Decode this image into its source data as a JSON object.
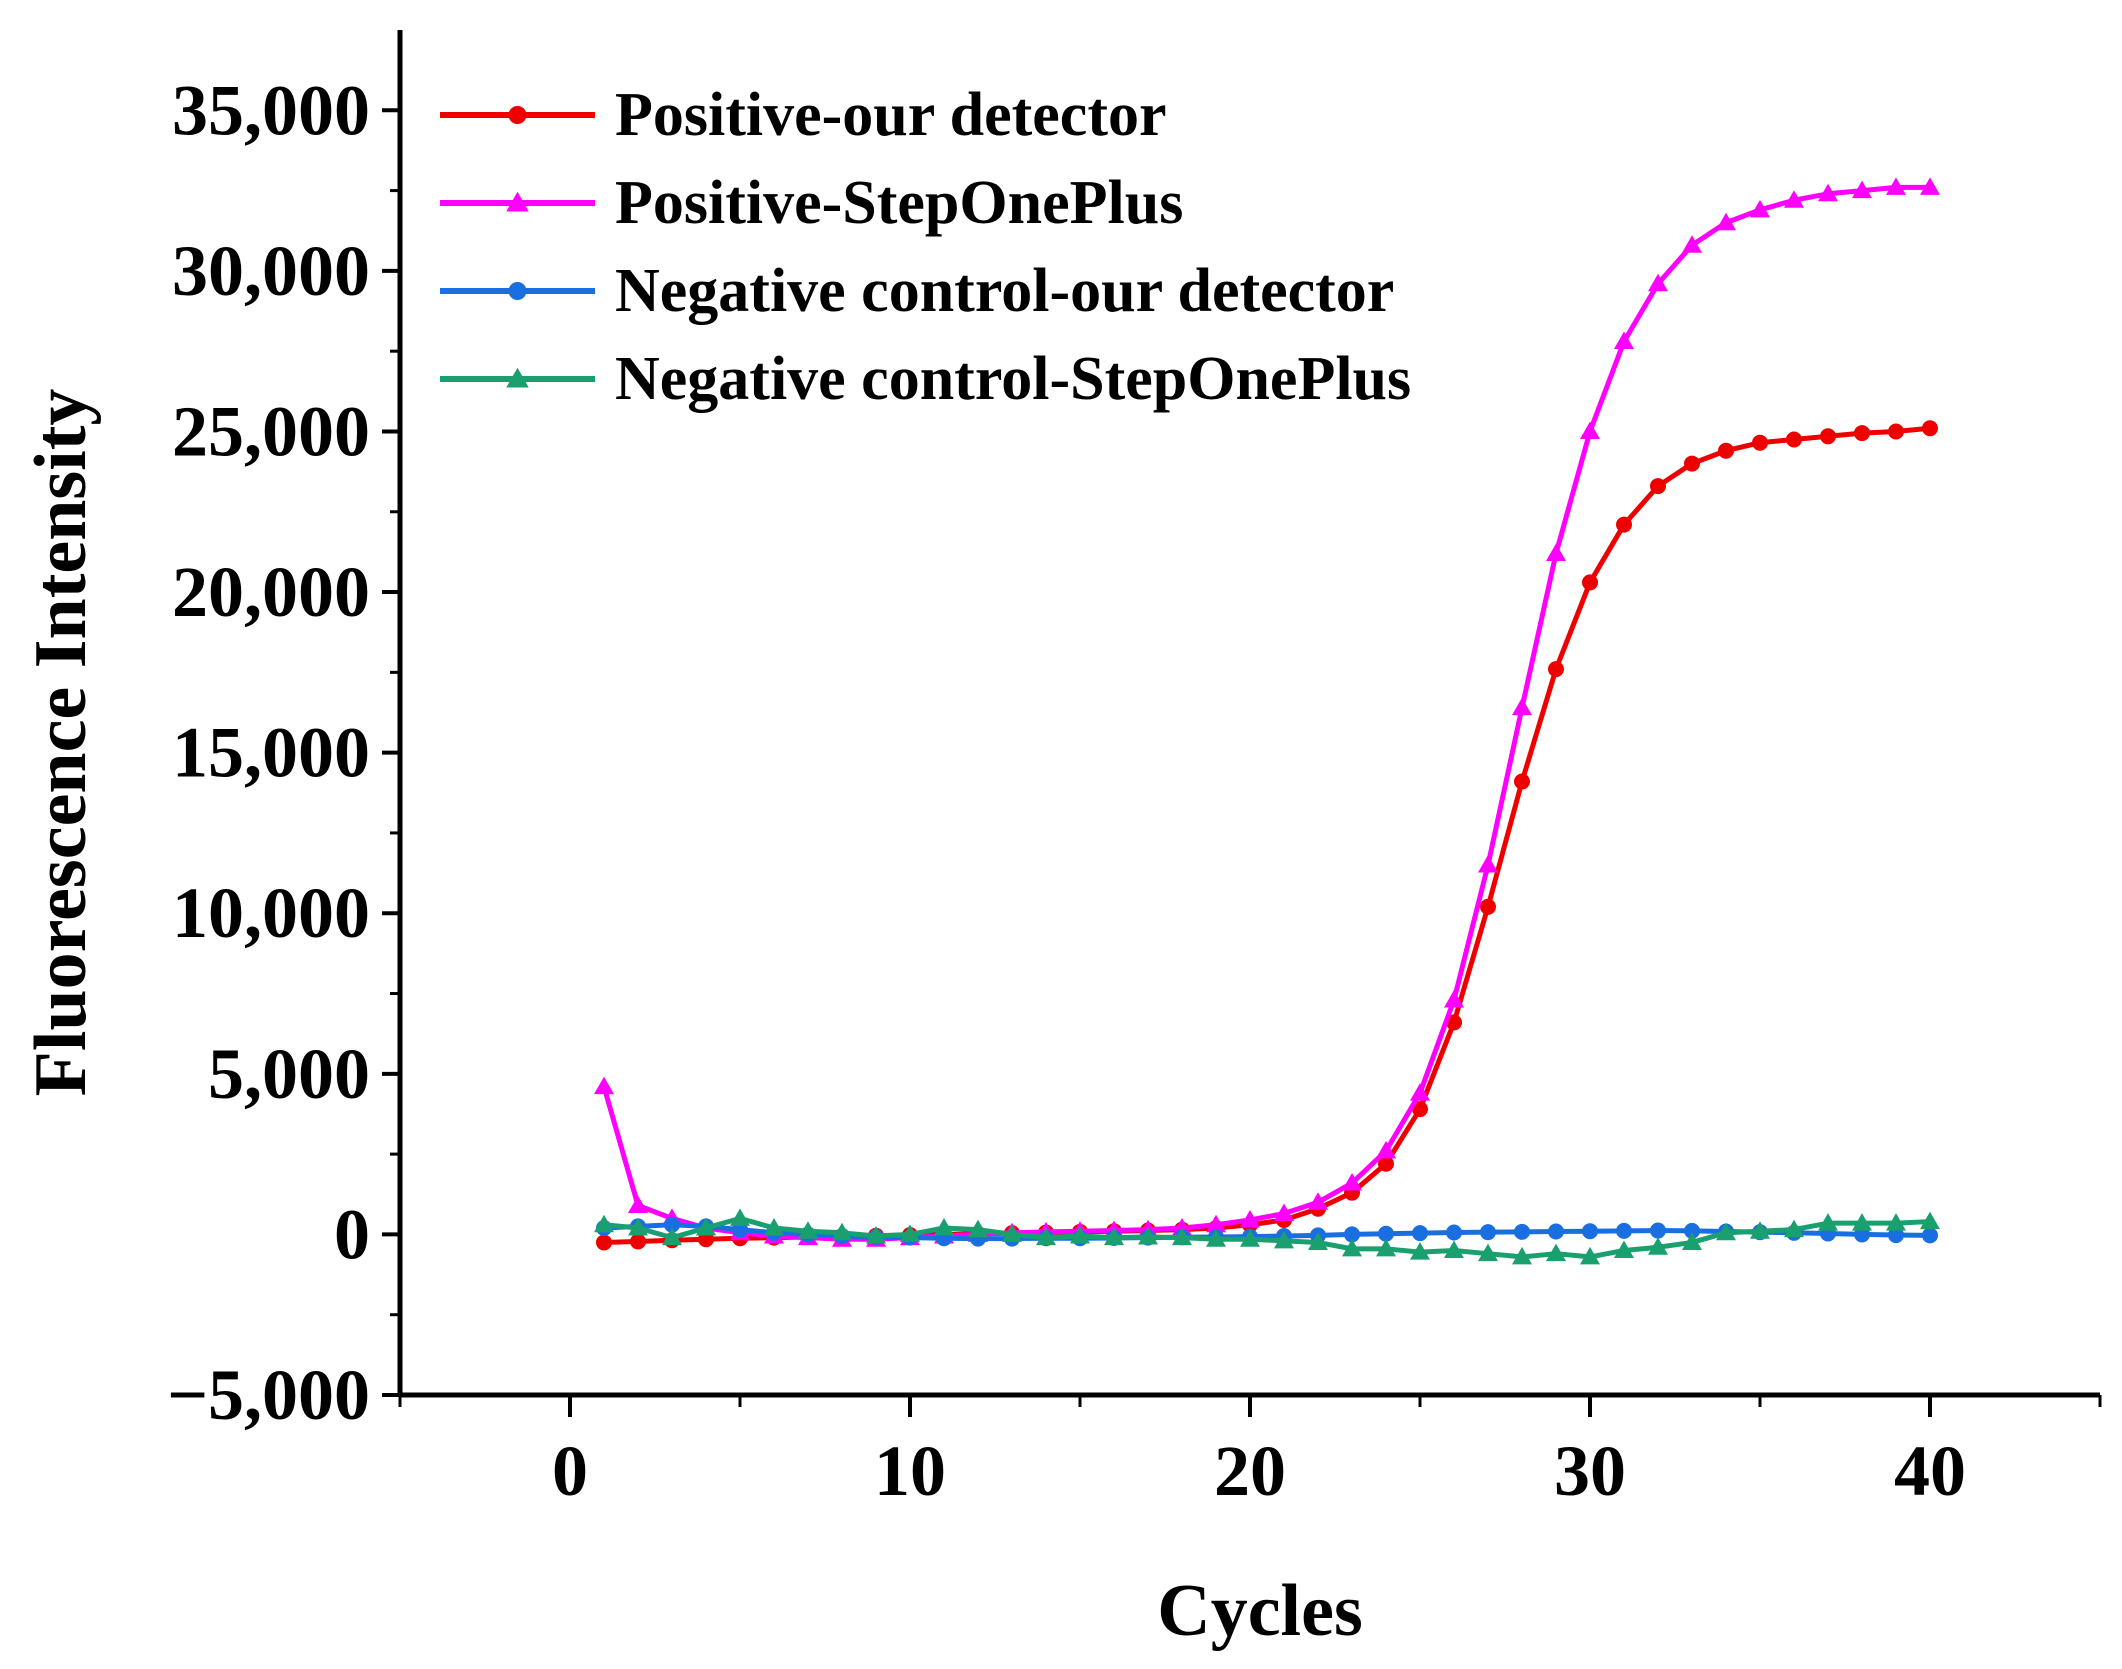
{
  "chart_data": {
    "type": "line",
    "title": "",
    "xlabel": "Cycles",
    "ylabel": "Fluorescence Intensity",
    "xlim": [
      -5,
      45
    ],
    "ylim": [
      -5000,
      37500
    ],
    "xticks": [
      0,
      10,
      20,
      30,
      40
    ],
    "xtick_labels": [
      "0",
      "10",
      "20",
      "30",
      "40"
    ],
    "yticks": [
      -5000,
      0,
      5000,
      10000,
      15000,
      20000,
      25000,
      30000,
      35000
    ],
    "ytick_labels": [
      "−5,000",
      "0",
      "5,000",
      "10,000",
      "15,000",
      "20,000",
      "25,000",
      "30,000",
      "35,000"
    ],
    "legend_position": "top-left",
    "x": [
      1,
      2,
      3,
      4,
      5,
      6,
      7,
      8,
      9,
      10,
      11,
      12,
      13,
      14,
      15,
      16,
      17,
      18,
      19,
      20,
      21,
      22,
      23,
      24,
      25,
      26,
      27,
      28,
      29,
      30,
      31,
      32,
      33,
      34,
      35,
      36,
      37,
      38,
      39,
      40
    ],
    "series": [
      {
        "name": "Positive-our detector",
        "color": "#ee0000",
        "marker": "circle",
        "values": [
          -250,
          -220,
          -180,
          -150,
          -120,
          -100,
          -80,
          -60,
          -40,
          -20,
          0,
          20,
          40,
          60,
          80,
          100,
          120,
          150,
          200,
          300,
          450,
          800,
          1300,
          2200,
          3900,
          6600,
          10200,
          14100,
          17600,
          20300,
          22100,
          23300,
          24000,
          24400,
          24650,
          24750,
          24850,
          24950,
          25000,
          25100
        ]
      },
      {
        "name": "Positive-StepOnePlus",
        "color": "#ff00ff",
        "marker": "triangle",
        "values": [
          4600,
          900,
          500,
          200,
          50,
          -50,
          -100,
          -150,
          -150,
          -100,
          -50,
          0,
          50,
          80,
          100,
          120,
          150,
          200,
          300,
          450,
          650,
          1000,
          1600,
          2600,
          4400,
          7300,
          11500,
          16400,
          21200,
          25000,
          27800,
          29600,
          30800,
          31500,
          31900,
          32200,
          32400,
          32500,
          32600,
          32600
        ]
      },
      {
        "name": "Negative control-our detector",
        "color": "#1a6fe0",
        "marker": "circle",
        "values": [
          200,
          250,
          300,
          250,
          150,
          50,
          0,
          -50,
          -80,
          -100,
          -120,
          -130,
          -130,
          -120,
          -120,
          -110,
          -100,
          -90,
          -80,
          -70,
          -50,
          -30,
          0,
          20,
          40,
          60,
          70,
          80,
          90,
          100,
          110,
          120,
          110,
          90,
          70,
          50,
          30,
          0,
          -20,
          -30
        ]
      },
      {
        "name": "Negative control-StepOnePlus",
        "color": "#1aa06e",
        "marker": "triangle",
        "values": [
          300,
          200,
          -100,
          200,
          500,
          200,
          100,
          50,
          -50,
          0,
          200,
          150,
          0,
          -100,
          -50,
          -100,
          -80,
          -100,
          -150,
          -150,
          -200,
          -250,
          -450,
          -450,
          -550,
          -500,
          -600,
          -700,
          -600,
          -700,
          -500,
          -400,
          -250,
          50,
          100,
          150,
          350,
          350,
          350,
          400
        ]
      }
    ]
  }
}
